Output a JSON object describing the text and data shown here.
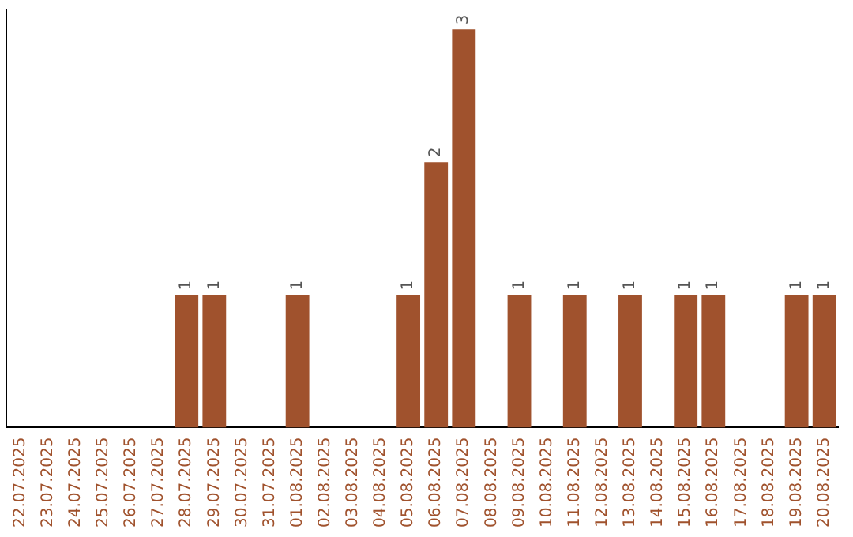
{
  "chart_data": {
    "type": "bar",
    "categories": [
      "22.07.2025",
      "23.07.2025",
      "24.07.2025",
      "25.07.2025",
      "26.07.2025",
      "27.07.2025",
      "28.07.2025",
      "29.07.2025",
      "30.07.2025",
      "31.07.2025",
      "01.08.2025",
      "02.08.2025",
      "03.08.2025",
      "04.08.2025",
      "05.08.2025",
      "06.08.2025",
      "07.08.2025",
      "08.08.2025",
      "09.08.2025",
      "10.08.2025",
      "11.08.2025",
      "12.08.2025",
      "13.08.2025",
      "14.08.2025",
      "15.08.2025",
      "16.08.2025",
      "17.08.2025",
      "18.08.2025",
      "19.08.2025",
      "20.08.2025"
    ],
    "values": [
      0,
      0,
      0,
      0,
      0,
      0,
      1,
      1,
      0,
      0,
      1,
      0,
      0,
      0,
      1,
      2,
      3,
      0,
      1,
      0,
      1,
      0,
      1,
      0,
      1,
      1,
      0,
      0,
      1,
      1
    ],
    "value_labels": [
      null,
      null,
      null,
      null,
      null,
      null,
      "1",
      "1",
      null,
      null,
      "1",
      null,
      null,
      null,
      "1",
      "2",
      "3",
      null,
      "1",
      null,
      "1",
      null,
      "1",
      null,
      "1",
      "1",
      null,
      null,
      "1",
      "1"
    ],
    "color": "#a0522d",
    "tick_labels": "x",
    "grid": false,
    "legend": false
  }
}
